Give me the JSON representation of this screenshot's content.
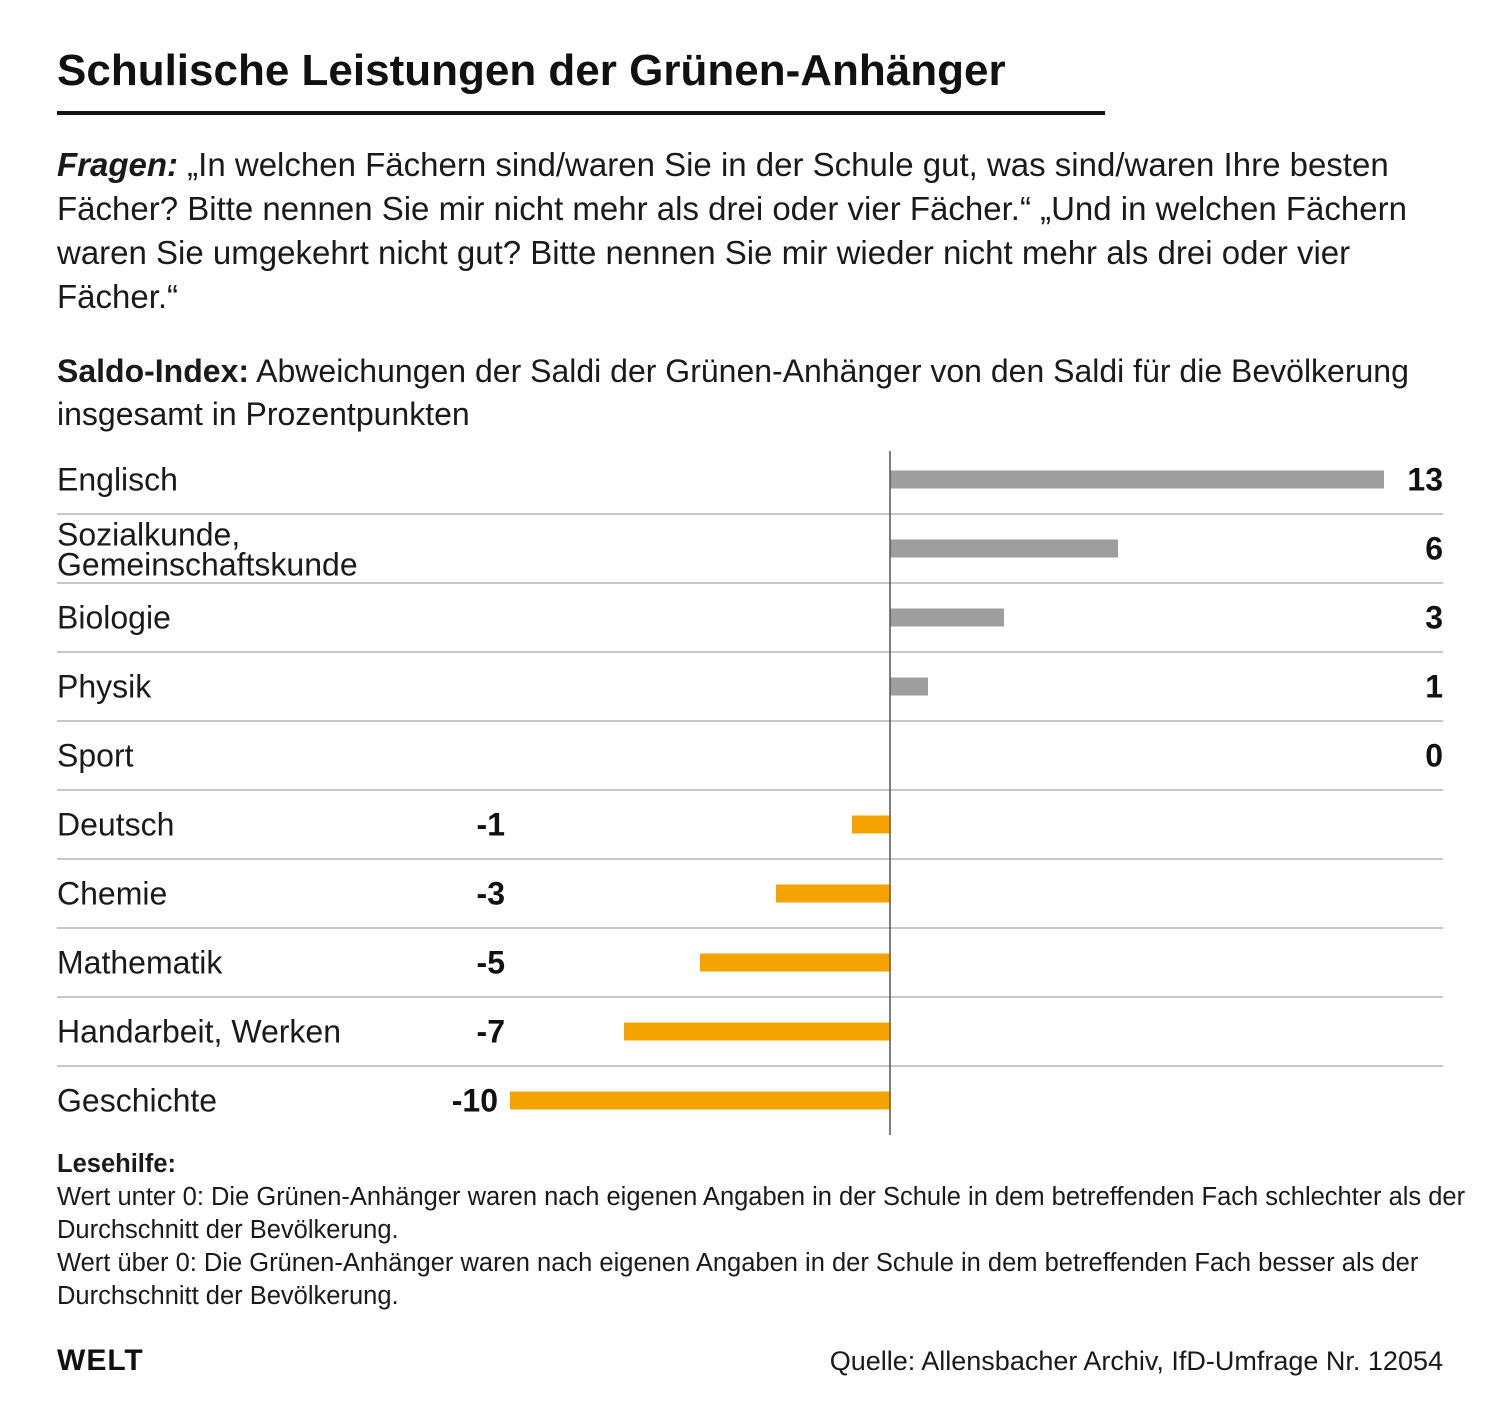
{
  "header": {
    "title": "Schulische Leistungen der Grünen-Anhänger",
    "question_lead": "Fragen:",
    "question_text": " „In welchen Fächern sind/waren Sie in der Schule gut, was sind/waren Ihre besten Fächer? Bitte nennen Sie mir nicht mehr als drei oder vier Fächer.“ „Und in welchen Fächern waren Sie umgekehrt nicht gut? Bitte nennen Sie mir wieder nicht mehr als drei oder vier Fächer.“",
    "index_lead": "Saldo-Index:",
    "index_text": " Abweichungen der Saldi der Grünen-Anhänger von den Saldi für die Bevölkerung insgesamt in Prozentpunkten"
  },
  "chart_data": {
    "type": "bar",
    "orientation": "horizontal",
    "categories": [
      "Englisch",
      "Sozialkunde, Gemeinschaftskunde",
      "Biologie",
      "Physik",
      "Sport",
      "Deutsch",
      "Chemie",
      "Mathematik",
      "Handarbeit, Werken",
      "Geschichte"
    ],
    "values": [
      13,
      6,
      3,
      1,
      0,
      -1,
      -3,
      -5,
      -7,
      -10
    ],
    "xlim": [
      -10,
      13
    ],
    "grid": false,
    "colors": {
      "positive": "#9e9e9e",
      "negative": "#f5a300"
    }
  },
  "note": {
    "heading": "Lesehilfe:",
    "line1": "Wert unter 0: Die Grünen-Anhänger waren nach eigenen Angaben in der Schule in dem betreffenden Fach schlechter als der Durchschnitt der Bevölkerung.",
    "line2": "Wert über 0: Die Grünen-Anhänger waren nach eigenen Angaben in der Schule in dem betreffenden Fach besser als der Durchschnitt der Bevölkerung."
  },
  "footer": {
    "logo": "WELT",
    "source": "Quelle: Allensbacher Archiv, IfD-Umfrage Nr. 12054"
  }
}
